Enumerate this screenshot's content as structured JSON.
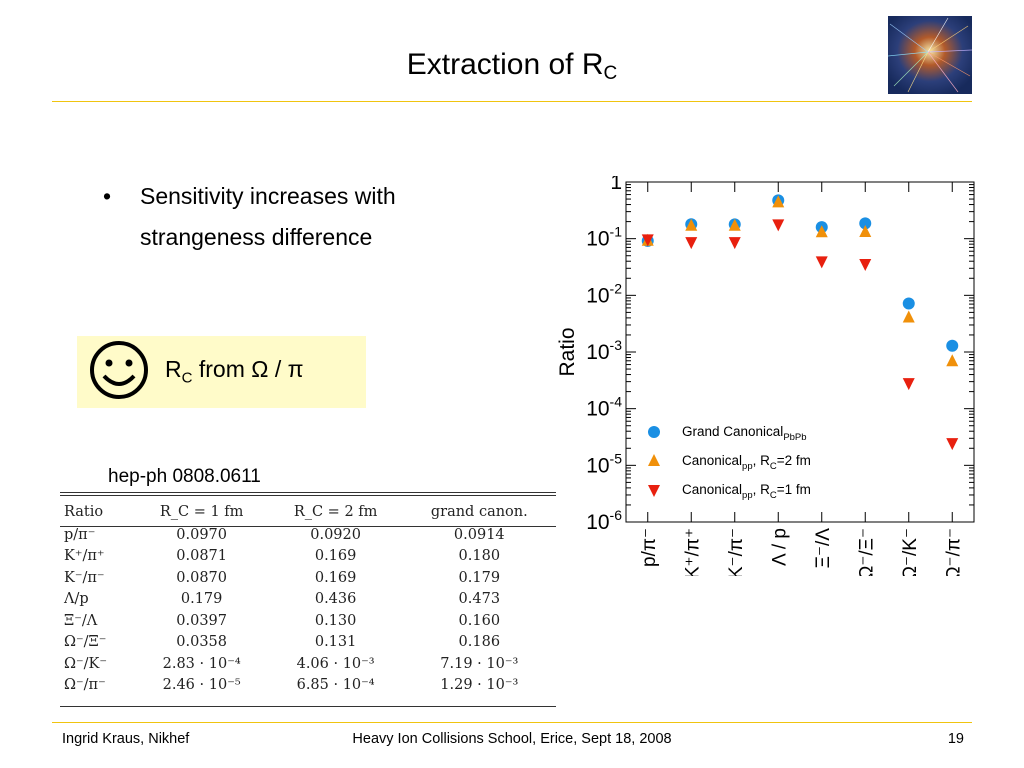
{
  "slide": {
    "title_main": "Extraction of R",
    "title_sub": "C",
    "bullet_char": "•",
    "bullet_text": "Sensitivity increases with strangeness difference",
    "callout": {
      "r": "R",
      "c": "C",
      "rest": " from Ω / π"
    },
    "reference": "hep-ph 0808.0611",
    "footer": {
      "left": "Ingrid Kraus, Nikhef",
      "center": "Heavy Ion Collisions School, Erice, Sept 18, 2008",
      "right": "19"
    },
    "colors": {
      "rule": "#f0c40f",
      "callout_bg": "#fffbc9"
    }
  },
  "table": {
    "headers": [
      "Ratio",
      "R_C = 1 fm",
      "R_C = 2 fm",
      "grand canon."
    ],
    "rows": [
      [
        "p/π⁻",
        "0.0970",
        "0.0920",
        "0.0914"
      ],
      [
        "K⁺/π⁺",
        "0.0871",
        "0.169",
        "0.180"
      ],
      [
        "K⁻/π⁻",
        "0.0870",
        "0.169",
        "0.179"
      ],
      [
        "Λ/p",
        "0.179",
        "0.436",
        "0.473"
      ],
      [
        "Ξ⁻/Λ",
        "0.0397",
        "0.130",
        "0.160"
      ],
      [
        "Ω⁻/Ξ⁻",
        "0.0358",
        "0.131",
        "0.186"
      ],
      [
        "Ω⁻/K⁻",
        "2.83 · 10⁻⁴",
        "4.06 · 10⁻³",
        "7.19 · 10⁻³"
      ],
      [
        "Ω⁻/π⁻",
        "2.46 · 10⁻⁵",
        "6.85 · 10⁻⁴",
        "1.29 · 10⁻³"
      ]
    ]
  },
  "chart_data": {
    "type": "scatter",
    "ylabel": "Ratio",
    "xlabel": "",
    "yscale": "log",
    "ylim": [
      1e-06,
      1
    ],
    "yticks": [
      {
        "value": 1,
        "base": "1",
        "exp": ""
      },
      {
        "value": 0.1,
        "base": "10",
        "exp": "-1"
      },
      {
        "value": 0.01,
        "base": "10",
        "exp": "-2"
      },
      {
        "value": 0.001,
        "base": "10",
        "exp": "-3"
      },
      {
        "value": 0.0001,
        "base": "10",
        "exp": "-4"
      },
      {
        "value": 1e-05,
        "base": "10",
        "exp": "-5"
      },
      {
        "value": 1e-06,
        "base": "10",
        "exp": "-6"
      }
    ],
    "categories": [
      "p/π⁻",
      "K⁺/π⁺",
      "K⁻/π⁻",
      "Λ / p",
      "Ξ⁻/Λ",
      "Ω⁻/Ξ⁻",
      "Ω⁻/K⁻",
      "Ω⁻/π⁻"
    ],
    "series": [
      {
        "name": "Grand Canonical_PbPb",
        "legend_main": "Grand Canonical",
        "legend_sub": "PbPb",
        "legend_tail": "",
        "marker": "circle",
        "color": "#1a8fe3",
        "values": [
          0.0914,
          0.18,
          0.179,
          0.473,
          0.16,
          0.186,
          0.00719,
          0.00129
        ]
      },
      {
        "name": "Canonical_pp, R_C=2 fm",
        "legend_main": "Canonical",
        "legend_sub": "pp",
        "legend_tail": ", R",
        "legend_tail_sub": "C",
        "legend_end": "=2 fm",
        "marker": "triangle-up",
        "color": "#f0900a",
        "values": [
          0.092,
          0.169,
          0.169,
          0.436,
          0.13,
          0.131,
          0.00406,
          0.000685
        ]
      },
      {
        "name": "Canonical_pp, R_C=1 fm",
        "legend_main": "Canonical",
        "legend_sub": "pp",
        "legend_tail": ", R",
        "legend_tail_sub": "C",
        "legend_end": "=1 fm",
        "marker": "triangle-down",
        "color": "#e8200f",
        "values": [
          0.097,
          0.0871,
          0.087,
          0.179,
          0.0397,
          0.0358,
          0.000283,
          2.46e-05
        ]
      }
    ],
    "legend": "lower-left",
    "grid": false
  }
}
